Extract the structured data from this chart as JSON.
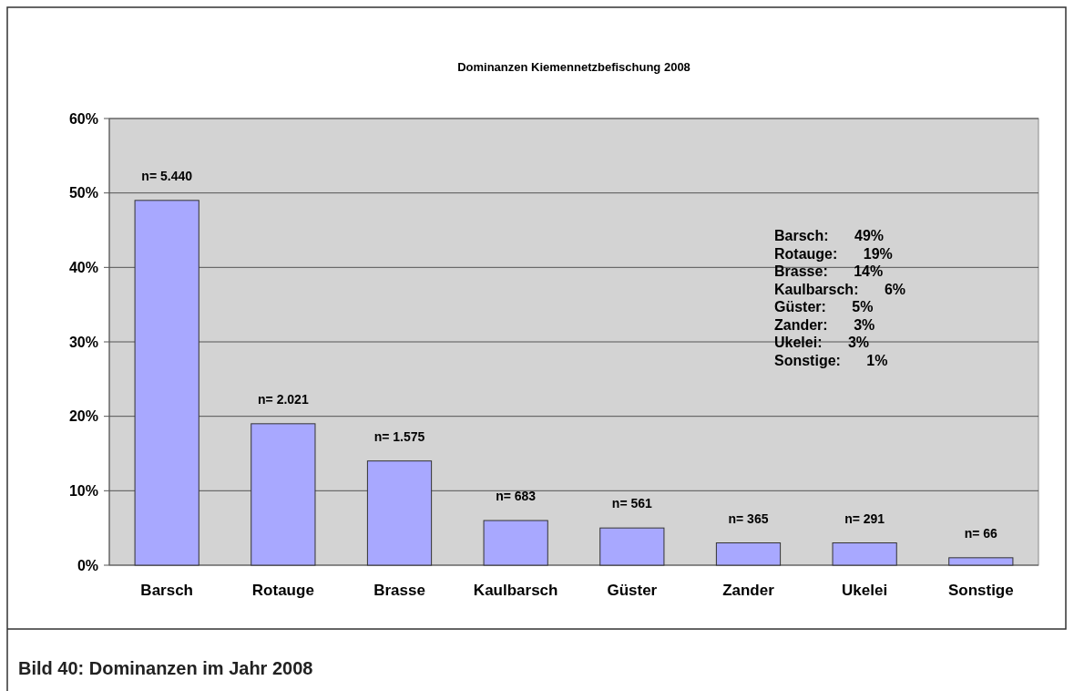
{
  "chart_data": {
    "type": "bar",
    "title": "Dominanzen Kiemennetzbefischung 2008",
    "categories": [
      "Barsch",
      "Rotauge",
      "Brasse",
      "Kaulbarsch",
      "Güster",
      "Zander",
      "Ukelei",
      "Sonstige"
    ],
    "values": [
      49,
      19,
      14,
      6,
      5,
      3,
      3,
      1
    ],
    "color": "#a8a8ff",
    "ylim": [
      0,
      60
    ],
    "yticks": [
      {
        "value": 0,
        "label": "0%"
      },
      {
        "value": 10,
        "label": "10%"
      },
      {
        "value": 20,
        "label": "20%"
      },
      {
        "value": 30,
        "label": "30%"
      },
      {
        "value": 40,
        "label": "40%"
      },
      {
        "value": 50,
        "label": "50%"
      },
      {
        "value": 60,
        "label": "60%"
      }
    ],
    "grid": "y",
    "annotations": [
      {
        "text": "n= 5.440",
        "x": "Barsch",
        "y": 49
      },
      {
        "text": "n= 2.021",
        "x": "Rotauge",
        "y": 19
      },
      {
        "text": "n= 1.575",
        "x": "Brasse",
        "y": 14
      },
      {
        "text": "n= 683",
        "x": "Kaulbarsch",
        "y": 6
      },
      {
        "text": "n= 561",
        "x": "Güster",
        "y": 5
      },
      {
        "text": "n= 365",
        "x": "Zander",
        "y": 3
      },
      {
        "text": "n= 291",
        "x": "Ukelei",
        "y": 3
      },
      {
        "text": "n= 66",
        "x": "Sonstige",
        "y": 1
      },
      "Barsch: 49%",
      "Rotauge: 19%",
      "Brasse: 14%",
      "Kaulbarsch: 6%",
      "Güster: 5%",
      "Zander: 3%",
      "Ukelei: 3%",
      "Sonstige: 1%",
      "Bild 40: Dominanzen im Jahr 2008"
    ]
  }
}
